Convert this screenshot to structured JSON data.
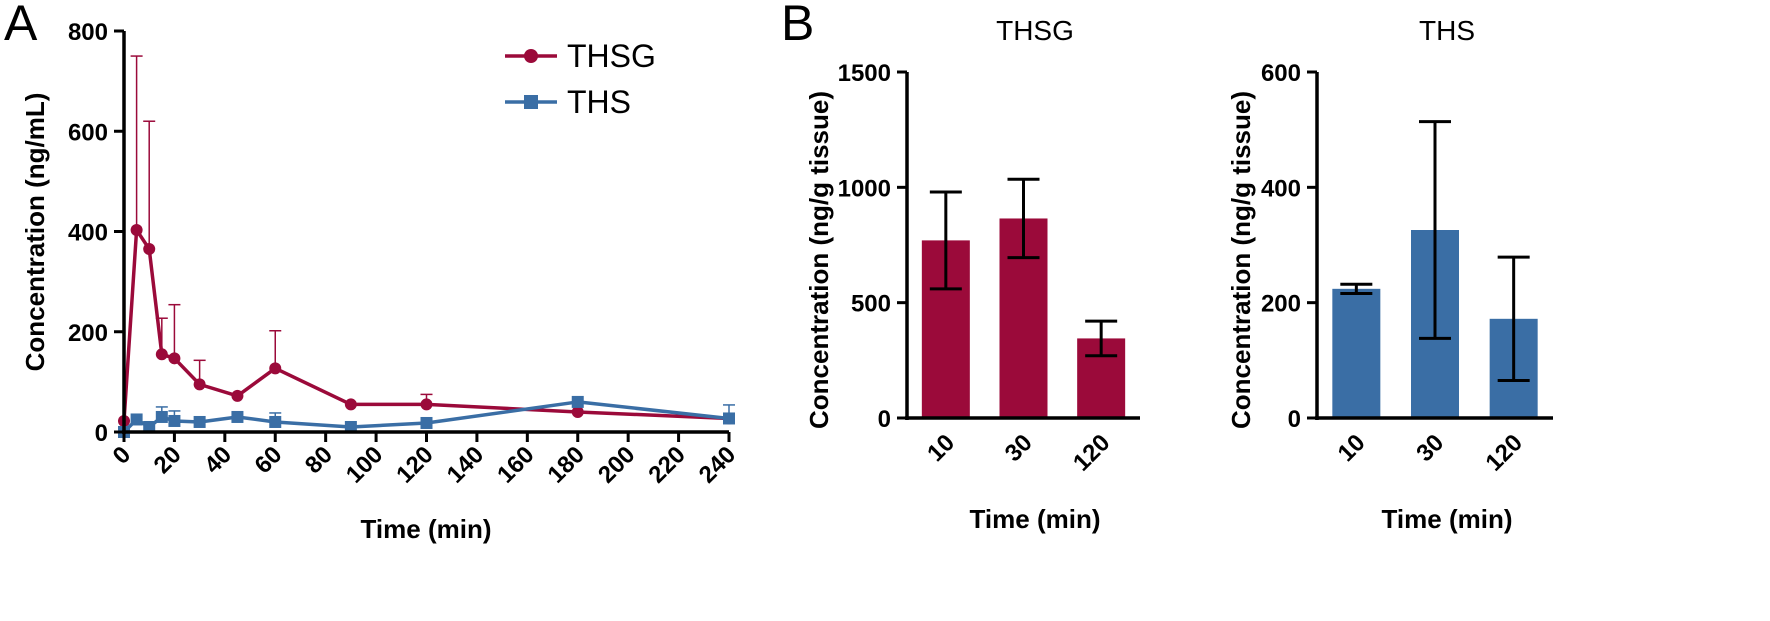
{
  "panel_labels": {
    "a": "A",
    "b": "B"
  },
  "colors": {
    "thsg": "#9b0a3a",
    "ths": "#3a6ea5",
    "axis": "#000000"
  },
  "chart_data": [
    {
      "type": "line",
      "panel": "A",
      "title": "",
      "xlabel": "Time (min)",
      "ylabel": "Concentration (ng/mL)",
      "xlim": [
        0,
        240
      ],
      "ylim": [
        0,
        800
      ],
      "xticks": [
        0,
        20,
        40,
        60,
        80,
        100,
        120,
        140,
        160,
        180,
        200,
        220,
        240
      ],
      "yticks": [
        0,
        200,
        400,
        600,
        800
      ],
      "legend_position": "top-right",
      "series": [
        {
          "name": "THSG",
          "marker": "circle",
          "color": "#9b0a3a",
          "x": [
            0,
            5,
            10,
            15,
            20,
            30,
            45,
            60,
            90,
            120,
            180,
            240
          ],
          "y": [
            22,
            403,
            365,
            155,
            147,
            95,
            72,
            127,
            55,
            55,
            40,
            27
          ],
          "err": [
            0,
            347,
            255,
            72,
            107,
            48,
            0,
            75,
            0,
            20,
            0,
            0
          ]
        },
        {
          "name": "THS",
          "marker": "square",
          "color": "#3a6ea5",
          "x": [
            0,
            5,
            10,
            15,
            20,
            30,
            45,
            60,
            90,
            120,
            180,
            240
          ],
          "y": [
            0,
            25,
            10,
            30,
            22,
            20,
            30,
            20,
            10,
            18,
            60,
            27
          ],
          "err": [
            0,
            0,
            8,
            20,
            20,
            0,
            0,
            18,
            0,
            0,
            0,
            27
          ]
        }
      ]
    },
    {
      "type": "bar",
      "panel": "B",
      "title": "THSG",
      "xlabel": "Time (min)",
      "ylabel": "Concentration (ng/g tissue)",
      "categories": [
        "10",
        "30",
        "120"
      ],
      "values": [
        770,
        865,
        345
      ],
      "err": [
        210,
        170,
        75
      ],
      "ylim": [
        0,
        1500
      ],
      "yticks": [
        0,
        500,
        1000,
        1500
      ],
      "color": "#9b0a3a"
    },
    {
      "type": "bar",
      "panel": "B",
      "title": "THS",
      "xlabel": "Time (min)",
      "ylabel": "Concentration (ng/g tissue)",
      "categories": [
        "10",
        "30",
        "120"
      ],
      "values": [
        224,
        326,
        172
      ],
      "err": [
        8,
        188,
        107
      ],
      "ylim": [
        0,
        600
      ],
      "yticks": [
        0,
        200,
        400,
        600
      ],
      "color": "#3a6ea5"
    }
  ]
}
